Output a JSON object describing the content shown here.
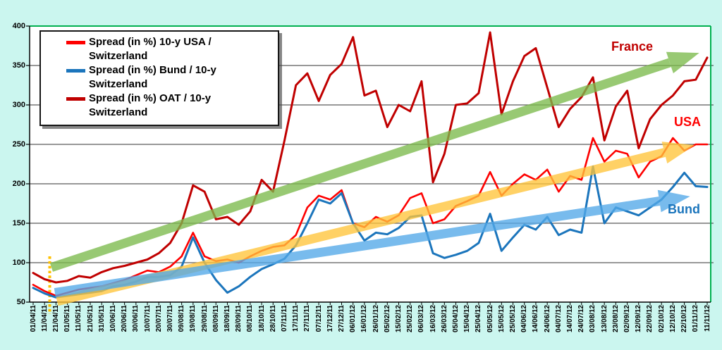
{
  "colors": {
    "background": "#CBF6EF",
    "plot_background": "#FFFFFF",
    "gridline": "#5A5A5A",
    "plot_border_green": "#00B050",
    "axis": "#000000",
    "event_marker": "#FFC000",
    "series_usa": "#FE0000",
    "series_bund": "#1B75BC",
    "series_oat": "#C00000"
  },
  "legend": {
    "items": [
      {
        "label": "Spread (in %) 10-y USA / Switzerland",
        "color": "#FE0000"
      },
      {
        "label": "Spread (in %) Bund / 10-y Switzerland",
        "color": "#1B75BC"
      },
      {
        "label": "Spread (in %) OAT / 10-y Switzerland",
        "color": "#C00000"
      }
    ]
  },
  "chart_data": {
    "type": "line",
    "title": "",
    "xlabel": "",
    "ylabel": "",
    "ylim": [
      50,
      400
    ],
    "y_ticks": [
      50,
      100,
      150,
      200,
      250,
      300,
      350,
      400
    ],
    "grid": true,
    "legend_position": "top-left",
    "x_tick_labels": [
      "01/04/11",
      "11/04/11",
      "21/04/11",
      "01/05/11",
      "11/05/11",
      "21/05/11",
      "31/05/11",
      "10/06/11",
      "20/06/11",
      "30/06/11",
      "10/07/11",
      "20/07/11",
      "30/07/11",
      "09/08/11",
      "19/08/11",
      "29/08/11",
      "08/09/11",
      "18/09/11",
      "28/09/11",
      "08/10/11",
      "18/10/11",
      "28/10/11",
      "07/11/11",
      "17/11/11",
      "27/11/11",
      "07/12/11",
      "17/12/11",
      "27/12/11",
      "06/01/12",
      "16/01/12",
      "26/01/12",
      "05/02/12",
      "15/02/12",
      "25/02/12",
      "06/03/12",
      "16/03/12",
      "26/03/12",
      "05/04/12",
      "15/04/12",
      "25/04/12",
      "05/05/12",
      "15/05/12",
      "25/05/12",
      "04/06/12",
      "14/06/12",
      "24/06/12",
      "04/07/12",
      "14/07/12",
      "24/07/12",
      "03/08/12",
      "13/08/12",
      "23/08/12",
      "02/09/12",
      "12/09/12",
      "22/09/12",
      "02/10/12",
      "12/10/12",
      "22/10/12",
      "01/11/12",
      "11/11/12"
    ],
    "series": [
      {
        "name": "Spread (in %) 10-y USA / Switzerland",
        "color": "#FE0000",
        "values": [
          72,
          64,
          58,
          62,
          66,
          68,
          70,
          74,
          78,
          84,
          90,
          88,
          95,
          108,
          138,
          108,
          102,
          104,
          100,
          108,
          115,
          120,
          122,
          135,
          170,
          185,
          180,
          192,
          150,
          145,
          158,
          152,
          160,
          182,
          188,
          150,
          155,
          172,
          178,
          185,
          215,
          185,
          200,
          212,
          205,
          218,
          190,
          210,
          205,
          258,
          228,
          242,
          238,
          208,
          228,
          235,
          258,
          242,
          250,
          250
        ]
      },
      {
        "name": "Spread (in %) Bund / 10-y Switzerland",
        "color": "#1B75BC",
        "values": [
          68,
          61,
          56,
          58,
          60,
          62,
          64,
          70,
          72,
          76,
          82,
          82,
          84,
          95,
          132,
          100,
          78,
          62,
          70,
          82,
          92,
          98,
          105,
          122,
          150,
          180,
          175,
          188,
          150,
          128,
          138,
          136,
          144,
          158,
          160,
          112,
          106,
          110,
          115,
          125,
          162,
          115,
          132,
          148,
          142,
          158,
          135,
          142,
          138,
          222,
          150,
          170,
          165,
          160,
          170,
          180,
          196,
          214,
          197,
          196
        ]
      },
      {
        "name": "Spread (in %) OAT / 10-y Switzerland",
        "color": "#C00000",
        "values": [
          87,
          79,
          75,
          77,
          83,
          81,
          88,
          93,
          96,
          100,
          104,
          112,
          125,
          150,
          198,
          190,
          155,
          158,
          148,
          165,
          205,
          190,
          255,
          325,
          340,
          305,
          338,
          352,
          386,
          312,
          318,
          272,
          300,
          292,
          330,
          202,
          238,
          300,
          302,
          315,
          392,
          288,
          330,
          362,
          372,
          322,
          272,
          295,
          310,
          335,
          255,
          298,
          318,
          245,
          282,
          300,
          312,
          330,
          332,
          360
        ]
      }
    ],
    "trend_arrows": [
      {
        "label": "France",
        "arrow_color": "#7CBB4C",
        "label_color": "#C00000",
        "from": {
          "tick": 1.6,
          "value": 94
        },
        "to": {
          "tick": 58.3,
          "value": 366
        }
      },
      {
        "label": "USA",
        "arrow_color": "#FFC53A",
        "label_color": "#FE0000",
        "from": {
          "tick": 2.1,
          "value": 51
        },
        "to": {
          "tick": 57.9,
          "value": 249
        }
      },
      {
        "label": "Bund",
        "arrow_color": "#53A9E8",
        "label_color": "#1B75BC",
        "from": {
          "tick": 1.9,
          "value": 62
        },
        "to": {
          "tick": 57.5,
          "value": 184
        }
      }
    ],
    "event_marker": {
      "tick_label": "21/04/11",
      "tick": 1.45,
      "value_top": 108,
      "color": "#FFC000",
      "style": "dotted"
    }
  }
}
